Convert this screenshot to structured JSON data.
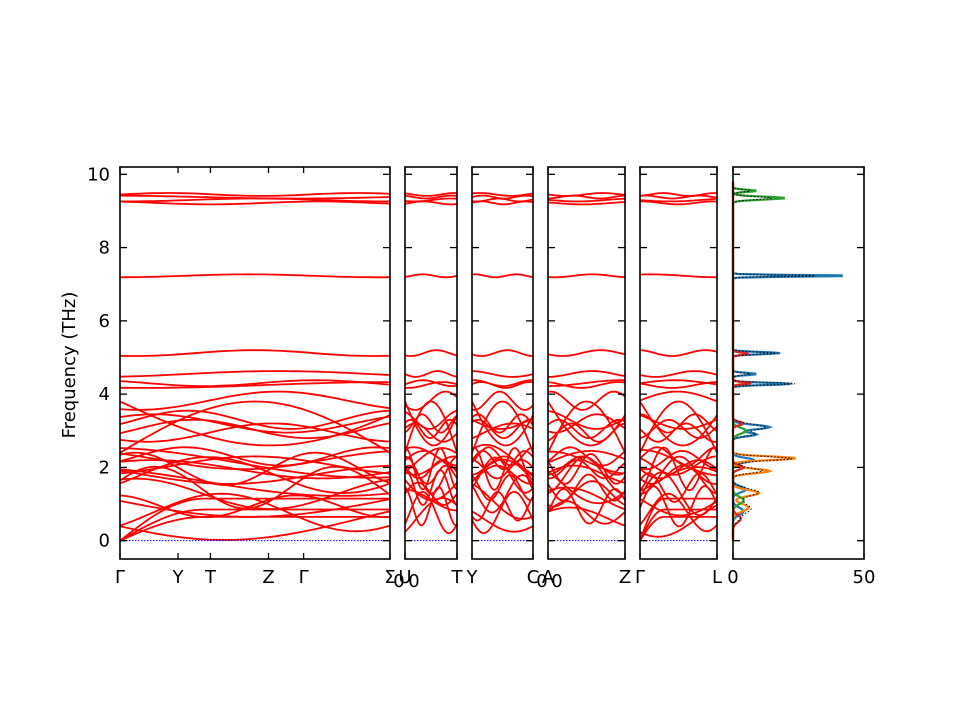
{
  "chart_data": {
    "type": "line",
    "ylabel": "Frequency (THz)",
    "ylim": [
      -0.5,
      10.2
    ],
    "yticks": [
      0,
      2,
      4,
      6,
      8,
      10
    ],
    "line_color": "#ff0000",
    "zero_line_color": "#0000ff",
    "segments": [
      {
        "ticks": [
          {
            "label": "Γ",
            "x": 0
          },
          {
            "label": "Y",
            "x": 0.215
          },
          {
            "label": "T",
            "x": 0.335
          },
          {
            "label": "Z",
            "x": 0.55
          },
          {
            "label": "Γ",
            "x": 0.68
          },
          {
            "label": "Σ",
            "sub": "0",
            "x": 1
          }
        ]
      },
      {
        "ticks": [
          {
            "label": "U",
            "sub": "0",
            "x": 0
          },
          {
            "label": "T",
            "x": 1
          }
        ]
      },
      {
        "ticks": [
          {
            "label": "Y",
            "x": 0
          },
          {
            "label": "C",
            "sub": "0",
            "x": 1
          }
        ]
      },
      {
        "ticks": [
          {
            "label": "A",
            "sub": "0",
            "x": 0
          },
          {
            "label": "Z",
            "x": 1
          }
        ]
      },
      {
        "ticks": [
          {
            "label": "Γ",
            "x": 0
          },
          {
            "label": "L",
            "x": 1
          }
        ]
      }
    ],
    "dos": {
      "xlim": [
        0,
        50
      ],
      "xticks": [
        0,
        50
      ],
      "series_colors": [
        "#1f77b4",
        "#ff7f0e",
        "#2ca02c",
        "#d62728"
      ],
      "total_line_color": "#000000"
    }
  }
}
